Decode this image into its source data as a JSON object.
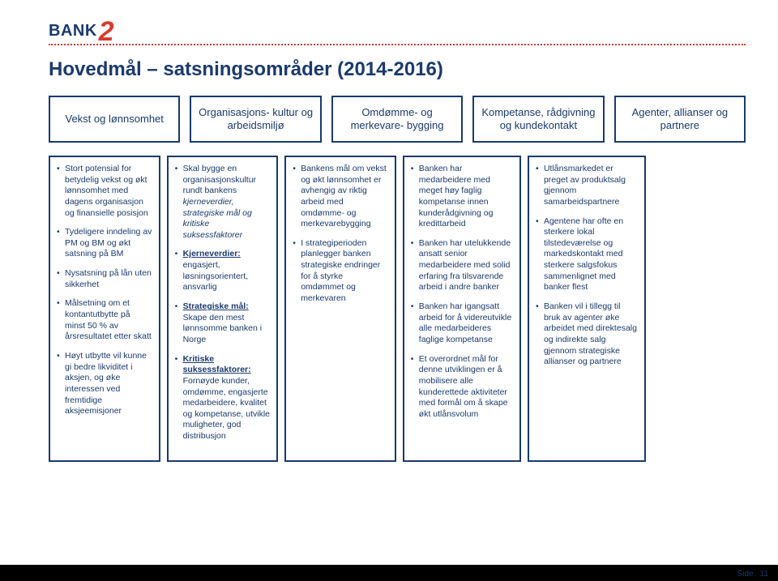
{
  "logo": {
    "brand": "BANK",
    "suffix": "2"
  },
  "title": "Hovedmål – satsningsområder (2014-2016)",
  "headers": [
    "Vekst og lønnsomhet",
    "Organisasjons-\nkultur og arbeidsmiljø",
    "Omdømme- og merkevare-\nbygging",
    "Kompetanse, rådgivning og kundekontakt",
    "Agenter, allianser og partnere"
  ],
  "columns": [
    {
      "width_pct": 16,
      "items": [
        {
          "text": "Stort potensial for betydelig vekst og økt lønnsomhet med dagens organisasjon og finansielle posisjon"
        },
        {
          "text": "Tydeligere inndeling av PM og BM og økt satsning på BM"
        },
        {
          "text": "Nysatsning på lån uten sikkerhet"
        },
        {
          "text": "Målsetning om et kontantutbytte på minst 50 % av årsresultatet etter skatt"
        },
        {
          "text": "Høyt utbytte vil kunne gi bedre likviditet i aksjen, og øke interessen ved fremtidige aksjeemisjoner"
        }
      ]
    },
    {
      "width_pct": 16,
      "items": [
        {
          "text": "Skal bygge en organisasjonskultur rundt bankens kjerneverdier, strategiske mål og kritiske suksessfaktorer",
          "italic_range": "kjerneverdier, strategiske mål og kritiske suksessfaktorer"
        },
        {
          "html": "<span class='b u'>Kjerneverdier:</span> engasjert, løsningsorientert, ansvarlig"
        },
        {
          "html": "<span class='b u'>Strategiske mål:</span> Skape den mest lønnsomme banken i Norge"
        },
        {
          "html": "<span class='b u'>Kritiske suksessfaktorer:</span> Fornøyde kunder, omdømme, engasjerte medarbeidere, kvalitet og kompetanse, utvikle muligheter, god distribusjon"
        }
      ]
    },
    {
      "width_pct": 16,
      "items": [
        {
          "text": "Bankens mål om vekst og økt lønnsomhet er avhengig av riktig arbeid med omdømme- og merkevarebygging"
        },
        {
          "text": "I strategiperioden planlegger banken strategiske endringer for å styrke omdømmet og merkevaren"
        }
      ]
    },
    {
      "width_pct": 17,
      "items": [
        {
          "text": "Banken har medarbeidere med meget høy faglig kompetanse innen kunderådgivning og kredittarbeid"
        },
        {
          "text": "Banken har utelukkende ansatt senior medarbeidere med solid erfaring fra tilsvarende arbeid i andre banker"
        },
        {
          "text": "Banken har igangsatt arbeid for å videreutvikle alle medarbeideres faglige kompetanse"
        },
        {
          "text": "Et overordnet mål for denne utviklingen er å mobilisere alle kunderettede aktiviteter med formål om å skape økt utlånsvolum"
        }
      ]
    },
    {
      "width_pct": 17,
      "items": [
        {
          "text": "Utlånsmarkedet er preget av produktsalg gjennom samarbeidspartnere"
        },
        {
          "text": "Agentene har ofte en sterkere lokal tilstedeværelse og markedskontakt med sterkere salgsfokus sammenlignet med banker flest"
        },
        {
          "text": "Banken vil i tillegg til bruk av agenter øke arbeidet med direktesalg og indirekte salg gjennom strategiske allianser og partnere"
        }
      ]
    }
  ],
  "footer": {
    "label": "Side",
    "page": "11"
  },
  "colors": {
    "brand_blue": "#1a3a6d",
    "brand_red": "#d93a2e",
    "footer_bg": "#000000"
  }
}
